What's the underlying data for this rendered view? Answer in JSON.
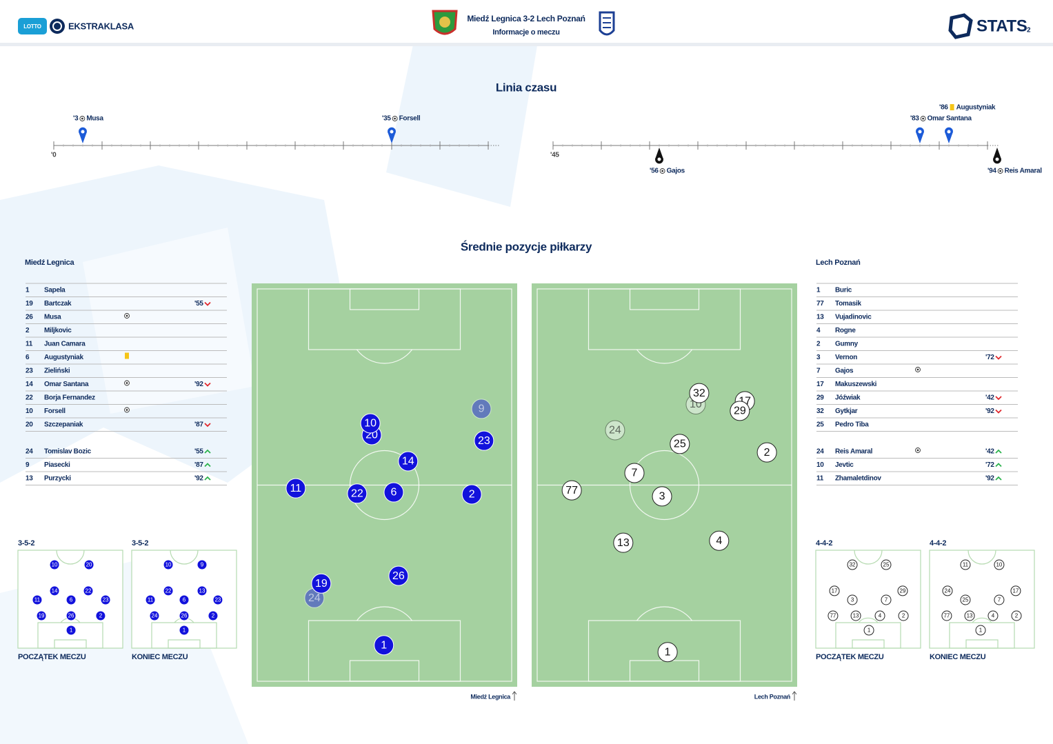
{
  "header": {
    "sponsor": "LOTTO",
    "league": "EKSTRAKLASA",
    "title": "Miedź Legnica 3-2 Lech Poznań",
    "subtitle": "Informacje o meczu",
    "brand": "STATS",
    "page": "2"
  },
  "timeline": {
    "title": "Linia czasu",
    "halves": [
      {
        "start": 0,
        "start_label": "'0"
      },
      {
        "start": 45,
        "start_label": "'45"
      }
    ],
    "events": [
      {
        "minute": 3,
        "minute_label": "'3",
        "type": "goal",
        "team": "home",
        "player": "Musa"
      },
      {
        "minute": 35,
        "minute_label": "'35",
        "type": "goal",
        "team": "home",
        "player": "Forsell"
      },
      {
        "minute": 56,
        "minute_label": "'56",
        "type": "goal",
        "team": "away",
        "player": "Gajos"
      },
      {
        "minute": 83,
        "minute_label": "'83",
        "type": "goal",
        "team": "home",
        "player": "Omar Santana"
      },
      {
        "minute": 86,
        "minute_label": "'86",
        "type": "yellow_card",
        "team": "home",
        "player": "Augustyniak"
      },
      {
        "minute": 94,
        "minute_label": "'94",
        "type": "goal",
        "team": "away",
        "player": "Reis Amaral"
      }
    ]
  },
  "positions": {
    "title": "Średnie pozycje piłkarzy",
    "teams": [
      {
        "name": "Miedź Legnica",
        "side": "home",
        "color": "#1212dc",
        "starters": [
          {
            "number": 1,
            "name": "Sapela"
          },
          {
            "number": 19,
            "name": "Bartczak",
            "sub": {
              "minute": "'55",
              "direction": "out"
            }
          },
          {
            "number": 26,
            "name": "Musa",
            "icon": "goal"
          },
          {
            "number": 2,
            "name": "Miljkovic"
          },
          {
            "number": 11,
            "name": "Juan Camara"
          },
          {
            "number": 6,
            "name": "Augustyniak",
            "icon": "yellow_card"
          },
          {
            "number": 23,
            "name": "Zieliński"
          },
          {
            "number": 14,
            "name": "Omar Santana",
            "icon": "goal",
            "sub": {
              "minute": "'92",
              "direction": "out"
            }
          },
          {
            "number": 22,
            "name": "Borja Fernandez"
          },
          {
            "number": 10,
            "name": "Forsell",
            "icon": "goal"
          },
          {
            "number": 20,
            "name": "Szczepaniak",
            "sub": {
              "minute": "'87",
              "direction": "out"
            }
          }
        ],
        "substitutes": [
          {
            "number": 24,
            "name": "Tomislav Bozic",
            "sub": {
              "minute": "'55",
              "direction": "in"
            }
          },
          {
            "number": 9,
            "name": "Piasecki",
            "sub": {
              "minute": "'87",
              "direction": "in"
            }
          },
          {
            "number": 13,
            "name": "Purzycki",
            "sub": {
              "minute": "'92",
              "direction": "in"
            }
          }
        ],
        "avg_positions": [
          {
            "number": 9,
            "x": 86.5,
            "y": 31.1,
            "substitute": true
          },
          {
            "number": 24,
            "x": 23.6,
            "y": 78.0,
            "substitute": true
          },
          {
            "number": 20,
            "x": 45.2,
            "y": 37.6
          },
          {
            "number": 10,
            "x": 44.7,
            "y": 34.7
          },
          {
            "number": 23,
            "x": 87.5,
            "y": 39.0
          },
          {
            "number": 14,
            "x": 58.9,
            "y": 44.1
          },
          {
            "number": 11,
            "x": 16.6,
            "y": 50.8
          },
          {
            "number": 22,
            "x": 39.7,
            "y": 52.1
          },
          {
            "number": 6,
            "x": 53.5,
            "y": 51.8
          },
          {
            "number": 2,
            "x": 82.9,
            "y": 52.3
          },
          {
            "number": 26,
            "x": 55.3,
            "y": 72.5
          },
          {
            "number": 19,
            "x": 26.2,
            "y": 74.4
          },
          {
            "number": 1,
            "x": 49.8,
            "y": 89.7
          }
        ],
        "formations": [
          {
            "formation": "3-5-2",
            "label": "POCZĄTEK MECZU",
            "players": [
              {
                "number": 10,
                "x": 34.9,
                "y": 14.8
              },
              {
                "number": 20,
                "x": 67.8,
                "y": 14.8
              },
              {
                "number": 14,
                "x": 34.9,
                "y": 41.5
              },
              {
                "number": 22,
                "x": 67.1,
                "y": 41.5
              },
              {
                "number": 11,
                "x": 18.4,
                "y": 50.7
              },
              {
                "number": 6,
                "x": 50.7,
                "y": 50.7
              },
              {
                "number": 23,
                "x": 83.6,
                "y": 50.7
              },
              {
                "number": 19,
                "x": 22.4,
                "y": 66.9
              },
              {
                "number": 26,
                "x": 50.7,
                "y": 66.9
              },
              {
                "number": 2,
                "x": 78.9,
                "y": 66.9
              },
              {
                "number": 1,
                "x": 50.7,
                "y": 81.7
              }
            ]
          },
          {
            "formation": "3-5-2",
            "label": "KONIEC MECZU",
            "players": [
              {
                "number": 10,
                "x": 34.9,
                "y": 14.8
              },
              {
                "number": 9,
                "x": 67.1,
                "y": 14.8
              },
              {
                "number": 22,
                "x": 34.9,
                "y": 41.5
              },
              {
                "number": 13,
                "x": 67.1,
                "y": 41.5
              },
              {
                "number": 11,
                "x": 17.8,
                "y": 50.7
              },
              {
                "number": 6,
                "x": 50.0,
                "y": 50.7
              },
              {
                "number": 23,
                "x": 82.2,
                "y": 50.7
              },
              {
                "number": 24,
                "x": 21.7,
                "y": 66.9
              },
              {
                "number": 26,
                "x": 50.0,
                "y": 66.9
              },
              {
                "number": 2,
                "x": 77.6,
                "y": 66.9
              },
              {
                "number": 1,
                "x": 50.0,
                "y": 81.7
              }
            ]
          }
        ]
      },
      {
        "name": "Lech Poznań",
        "side": "away",
        "color": "#ffffff",
        "starters": [
          {
            "number": 1,
            "name": "Buric"
          },
          {
            "number": 77,
            "name": "Tomasik"
          },
          {
            "number": 13,
            "name": "Vujadinovic"
          },
          {
            "number": 4,
            "name": "Rogne"
          },
          {
            "number": 2,
            "name": "Gumny"
          },
          {
            "number": 3,
            "name": "Vernon",
            "sub": {
              "minute": "'72",
              "direction": "out"
            }
          },
          {
            "number": 7,
            "name": "Gajos",
            "icon": "goal"
          },
          {
            "number": 17,
            "name": "Makuszewski"
          },
          {
            "number": 29,
            "name": "Jóźwiak",
            "sub": {
              "minute": "'42",
              "direction": "out"
            }
          },
          {
            "number": 32,
            "name": "Gytkjar",
            "sub": {
              "minute": "'92",
              "direction": "out"
            }
          },
          {
            "number": 25,
            "name": "Pedro Tiba"
          }
        ],
        "substitutes": [
          {
            "number": 24,
            "name": "Reis Amaral",
            "icon": "goal",
            "sub": {
              "minute": "'42",
              "direction": "in"
            }
          },
          {
            "number": 10,
            "name": "Jevtic",
            "sub": {
              "minute": "'72",
              "direction": "in"
            }
          },
          {
            "number": 11,
            "name": "Zhamaletdinov",
            "sub": {
              "minute": "'92",
              "direction": "in"
            }
          }
        ],
        "avg_positions": [
          {
            "number": 10,
            "x": 61.8,
            "y": 30.0,
            "substitute": true
          },
          {
            "number": 24,
            "x": 31.4,
            "y": 36.4,
            "substitute": true
          },
          {
            "number": 32,
            "x": 63.1,
            "y": 27.2
          },
          {
            "number": 17,
            "x": 80.3,
            "y": 29.2
          },
          {
            "number": 29,
            "x": 78.4,
            "y": 31.6
          },
          {
            "number": 25,
            "x": 55.8,
            "y": 39.8
          },
          {
            "number": 2,
            "x": 88.6,
            "y": 41.9
          },
          {
            "number": 7,
            "x": 38.7,
            "y": 47.0
          },
          {
            "number": 77,
            "x": 15.1,
            "y": 51.3
          },
          {
            "number": 3,
            "x": 49.1,
            "y": 52.8
          },
          {
            "number": 13,
            "x": 34.5,
            "y": 64.3
          },
          {
            "number": 4,
            "x": 70.6,
            "y": 63.8
          },
          {
            "number": 1,
            "x": 51.2,
            "y": 91.4
          }
        ],
        "formations": [
          {
            "formation": "4-4-2",
            "label": "POCZĄTEK MECZU",
            "players": [
              {
                "number": 32,
                "x": 34.9,
                "y": 14.8
              },
              {
                "number": 25,
                "x": 67.1,
                "y": 14.8
              },
              {
                "number": 17,
                "x": 17.8,
                "y": 41.5
              },
              {
                "number": 29,
                "x": 82.9,
                "y": 41.5
              },
              {
                "number": 3,
                "x": 34.9,
                "y": 50.7
              },
              {
                "number": 7,
                "x": 67.1,
                "y": 50.7
              },
              {
                "number": 77,
                "x": 16.4,
                "y": 66.9
              },
              {
                "number": 13,
                "x": 38.2,
                "y": 66.9
              },
              {
                "number": 4,
                "x": 61.2,
                "y": 66.9
              },
              {
                "number": 2,
                "x": 83.6,
                "y": 66.9
              },
              {
                "number": 1,
                "x": 50.7,
                "y": 81.7
              }
            ]
          },
          {
            "formation": "4-4-2",
            "label": "KONIEC MECZU",
            "players": [
              {
                "number": 11,
                "x": 34.2,
                "y": 14.8
              },
              {
                "number": 10,
                "x": 66.4,
                "y": 14.8
              },
              {
                "number": 24,
                "x": 17.1,
                "y": 41.5
              },
              {
                "number": 17,
                "x": 82.2,
                "y": 41.5
              },
              {
                "number": 25,
                "x": 34.2,
                "y": 50.7
              },
              {
                "number": 7,
                "x": 66.4,
                "y": 50.7
              },
              {
                "number": 77,
                "x": 16.4,
                "y": 66.9
              },
              {
                "number": 13,
                "x": 38.2,
                "y": 66.9
              },
              {
                "number": 4,
                "x": 60.5,
                "y": 66.9
              },
              {
                "number": 2,
                "x": 82.9,
                "y": 66.9
              },
              {
                "number": 1,
                "x": 48.7,
                "y": 81.7
              }
            ]
          }
        ]
      }
    ]
  }
}
